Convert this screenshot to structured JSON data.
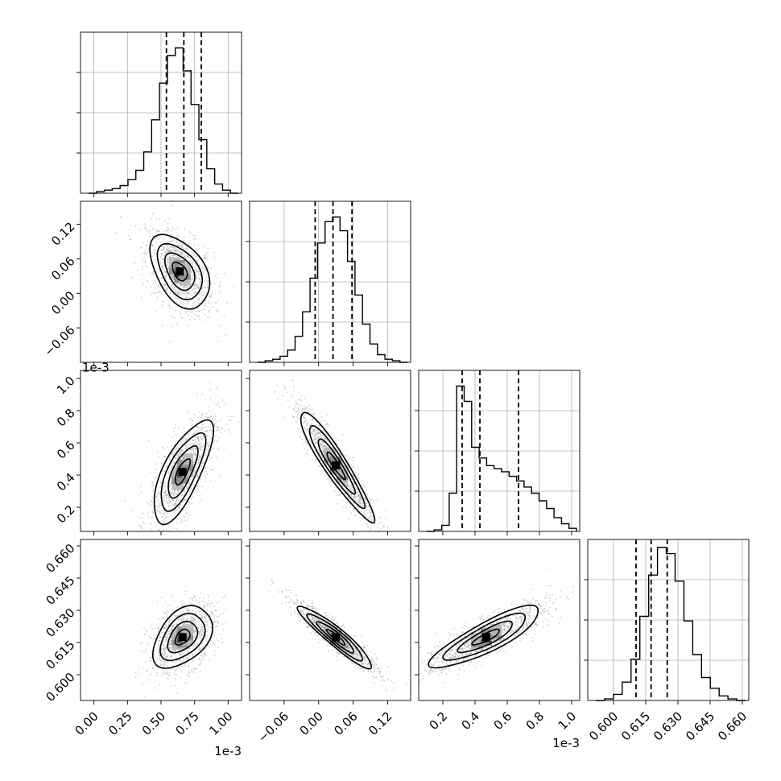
{
  "chart_data": {
    "type": "corner",
    "parameters": [
      {
        "xlim": [
          -0.1,
          1.1
        ],
        "ticks": [
          0.0,
          0.25,
          0.5,
          0.75,
          1.0
        ],
        "tick_labels": [
          "0.00",
          "0.25",
          "0.50",
          "0.75",
          "1.00"
        ],
        "scale_label": "1e-3",
        "quantiles": [
          0.54,
          0.67,
          0.8
        ],
        "mean": 0.67,
        "sd": 0.11
      },
      {
        "xlim": [
          -0.12,
          0.16
        ],
        "ticks": [
          -0.06,
          0.0,
          0.06,
          0.12
        ],
        "tick_labels": [
          "−0.06",
          "0.00",
          "0.06",
          "0.12"
        ],
        "scale_label": "",
        "quantiles": [
          -0.006,
          0.025,
          0.058
        ],
        "mean": 0.026,
        "sd": 0.032
      },
      {
        "xlim": [
          0.05,
          1.05
        ],
        "ticks": [
          0.2,
          0.4,
          0.6,
          0.8,
          1.0
        ],
        "tick_labels": [
          "0.2",
          "0.4",
          "0.6",
          "0.8",
          "1.0"
        ],
        "scale_label": "1e-3",
        "quantiles": [
          0.32,
          0.43,
          0.67
        ],
        "mean": 0.5,
        "sd": 0.18
      },
      {
        "xlim": [
          0.588,
          0.663
        ],
        "ticks": [
          0.6,
          0.615,
          0.63,
          0.645,
          0.66
        ],
        "tick_labels": [
          "0.600",
          "0.615",
          "0.630",
          "0.645",
          "0.660"
        ],
        "scale_label": "",
        "quantiles": [
          0.6105,
          0.6175,
          0.625
        ],
        "mean": 0.6175,
        "sd": 0.0072
      }
    ],
    "histograms": [
      {
        "counts": [
          0,
          1,
          2,
          3,
          5,
          9,
          15,
          27,
          48,
          72,
          90,
          95,
          80,
          58,
          35,
          16,
          6,
          2,
          0
        ]
      },
      {
        "counts": [
          0,
          1,
          2,
          4,
          8,
          17,
          33,
          55,
          78,
          92,
          95,
          86,
          66,
          44,
          25,
          12,
          5,
          2,
          1,
          0
        ]
      },
      {
        "counts": [
          0,
          1,
          4,
          25,
          95,
          85,
          55,
          48,
          43,
          41,
          39,
          36,
          33,
          29,
          25,
          20,
          15,
          9,
          5,
          2
        ]
      },
      {
        "counts": [
          0,
          1,
          4,
          12,
          27,
          55,
          82,
          100,
          96,
          78,
          52,
          30,
          15,
          8,
          3,
          1,
          0
        ]
      }
    ],
    "hist_gridlines": [
      0.25,
      0.5,
      0.75
    ],
    "pairs": [
      {
        "x": 0,
        "y": 1,
        "center": [
          0.64,
          0.038
        ],
        "sd": [
          0.11,
          0.032
        ],
        "rho": -0.45
      },
      {
        "x": 0,
        "y": 2,
        "center": [
          0.66,
          0.42
        ],
        "sd": [
          0.11,
          0.16
        ],
        "rho": 0.72
      },
      {
        "x": 1,
        "y": 2,
        "center": [
          0.03,
          0.46
        ],
        "sd": [
          0.032,
          0.17
        ],
        "rho": -0.93
      },
      {
        "x": 0,
        "y": 3,
        "center": [
          0.66,
          0.6175
        ],
        "sd": [
          0.11,
          0.0072
        ],
        "rho": 0.42
      },
      {
        "x": 1,
        "y": 3,
        "center": [
          0.03,
          0.6175
        ],
        "sd": [
          0.032,
          0.0072
        ],
        "rho": -0.93
      },
      {
        "x": 2,
        "y": 3,
        "center": [
          0.47,
          0.6175
        ],
        "sd": [
          0.17,
          0.0072
        ],
        "rho": 0.85
      }
    ],
    "contour_levels_sigma": [
      0.5,
      1.0,
      1.5,
      2.0
    ],
    "gridlines": true,
    "line_color": "#000000",
    "point_color": "#9a9a9a"
  }
}
